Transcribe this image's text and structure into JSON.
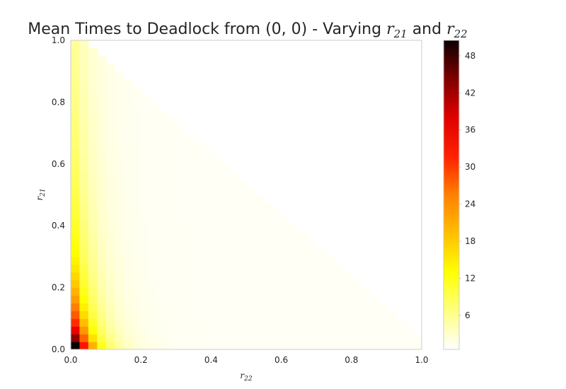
{
  "chart_data": {
    "type": "heatmap",
    "title": {
      "prefix": "Mean Times to Deadlock from (0, 0) - Varying ",
      "var1_base": "r",
      "var1_sub": "21",
      "conjunction": " and ",
      "var2_base": "r",
      "var2_sub": "22"
    },
    "xlabel": {
      "base": "r",
      "sub": "22"
    },
    "ylabel": {
      "base": "r",
      "sub": "21"
    },
    "xlim": [
      0.0,
      1.0
    ],
    "ylim": [
      0.0,
      1.0
    ],
    "xticks": [
      "0.0",
      "0.2",
      "0.4",
      "0.6",
      "0.8",
      "1.0"
    ],
    "yticks": [
      "0.0",
      "0.2",
      "0.4",
      "0.6",
      "0.8",
      "1.0"
    ],
    "colormap": "hot_r",
    "colorbar": {
      "vmin": 0.5,
      "vmax": 50.5,
      "ticks": [
        "6",
        "12",
        "18",
        "24",
        "30",
        "36",
        "42",
        "48"
      ]
    },
    "grid_steps": 40,
    "valid_region": "r21 + r22 <= 1",
    "approx_value_profile": "highest (~50) at r21=0, r22=0; falls quickly as r22 increases and slowly as r21 increases; near 1 where r21 + r22 approaches 1",
    "sample_values": [
      {
        "r21": 0.0,
        "r22": 0.0,
        "value": 50
      },
      {
        "r21": 0.05,
        "r22": 0.0,
        "value": 44
      },
      {
        "r21": 0.1,
        "r22": 0.0,
        "value": 33
      },
      {
        "r21": 0.2,
        "r22": 0.0,
        "value": 21
      },
      {
        "r21": 0.3,
        "r22": 0.0,
        "value": 15
      },
      {
        "r21": 0.5,
        "r22": 0.0,
        "value": 9
      },
      {
        "r21": 0.0,
        "r22": 0.05,
        "value": 16
      },
      {
        "r21": 0.0,
        "r22": 0.2,
        "value": 6
      },
      {
        "r21": 0.0,
        "r22": 0.5,
        "value": 2
      },
      {
        "r21": 0.5,
        "r22": 0.4,
        "value": 1
      }
    ]
  }
}
